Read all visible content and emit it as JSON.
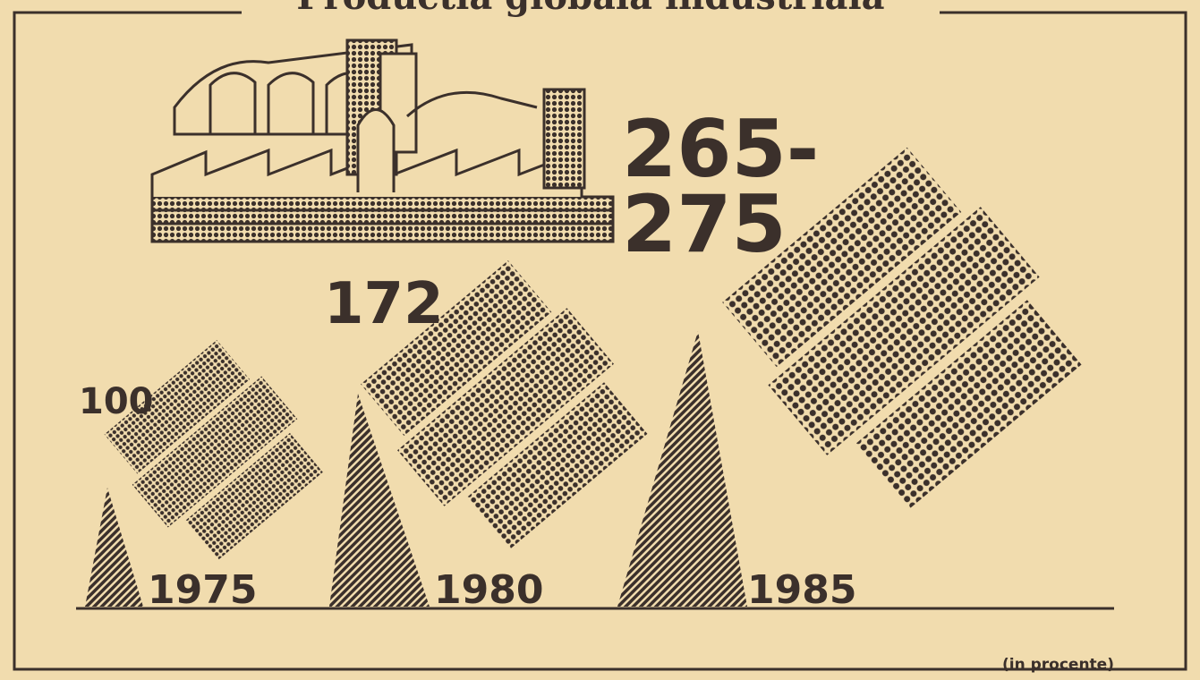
{
  "chart_data": {
    "type": "pictogram",
    "title": "Productia globala industriala",
    "unit_note": "(in procente)",
    "categories": [
      "1975",
      "1980",
      "1985"
    ],
    "low": [
      100,
      172,
      265
    ],
    "high": [
      100,
      172,
      275
    ],
    "value_labels": [
      "100",
      "172",
      "265-275"
    ],
    "color": "#3b302b"
  }
}
